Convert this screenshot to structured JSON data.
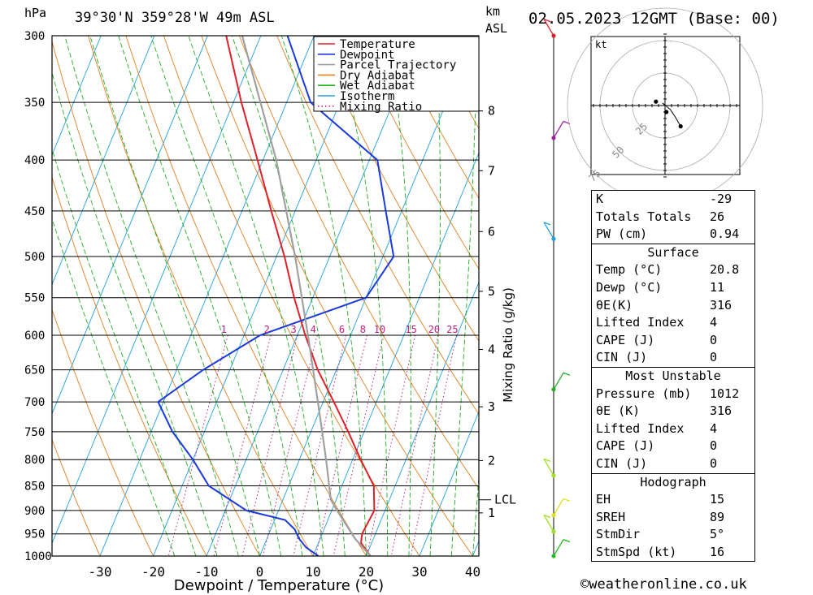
{
  "header": {
    "pressure_unit": "hPa",
    "location": "39°30'N  359°28'W  49m  ASL",
    "height_unit": "km",
    "height_unit2": "ASL",
    "datetime": "02.05.2023  12GMT  (Base: 00)"
  },
  "credit": "©weatheronline.co.uk",
  "hodograph": {
    "unit": "kt",
    "ring_labels": [
      "25",
      "50",
      "75"
    ],
    "trace": [
      [
        0,
        0
      ],
      [
        -2,
        2
      ],
      [
        4,
        -3
      ],
      [
        8,
        -9
      ],
      [
        12,
        -16
      ]
    ],
    "points": [
      [
        -7,
        3
      ],
      [
        1,
        -5
      ],
      [
        12,
        -16
      ]
    ]
  },
  "indices": {
    "rows": [
      {
        "label": "K",
        "value": "-29"
      },
      {
        "label": "Totals Totals",
        "value": "26"
      },
      {
        "label": "PW (cm)",
        "value": "0.94"
      }
    ]
  },
  "surface": {
    "title": "Surface",
    "rows": [
      {
        "label": "Temp (°C)",
        "value": "20.8"
      },
      {
        "label": "Dewp (°C)",
        "value": "11"
      },
      {
        "label": "θE(K)",
        "value": "316"
      },
      {
        "label": "Lifted Index",
        "value": "4"
      },
      {
        "label": "CAPE (J)",
        "value": "0"
      },
      {
        "label": "CIN (J)",
        "value": "0"
      }
    ]
  },
  "most_unstable": {
    "title": "Most Unstable",
    "rows": [
      {
        "label": "Pressure (mb)",
        "value": "1012"
      },
      {
        "label": "θE (K)",
        "value": "316"
      },
      {
        "label": "Lifted Index",
        "value": "4"
      },
      {
        "label": "CAPE (J)",
        "value": "0"
      },
      {
        "label": "CIN (J)",
        "value": "0"
      }
    ]
  },
  "hodograph_table": {
    "title": "Hodograph",
    "rows": [
      {
        "label": "EH",
        "value": "15"
      },
      {
        "label": "SREH",
        "value": "89"
      },
      {
        "label": "StmDir",
        "value": "5°"
      },
      {
        "label": "StmSpd (kt)",
        "value": "16"
      }
    ]
  },
  "chart_data": {
    "type": "line",
    "title": "",
    "xlabel": "Dewpoint / Temperature (°C)",
    "ylabel": "hPa",
    "right_label": "Mixing Ratio (g/kg)",
    "x_ticks": [
      -30,
      -20,
      -10,
      0,
      10,
      20,
      30,
      40
    ],
    "pressure_levels": [
      300,
      350,
      400,
      450,
      500,
      550,
      600,
      650,
      700,
      750,
      800,
      850,
      900,
      950,
      1000
    ],
    "height_ticks": [
      {
        "label": "8",
        "p": 357
      },
      {
        "label": "7",
        "p": 410
      },
      {
        "label": "6",
        "p": 472
      },
      {
        "label": "5",
        "p": 542
      },
      {
        "label": "4",
        "p": 620
      },
      {
        "label": "3",
        "p": 708
      },
      {
        "label": "2",
        "p": 802
      },
      {
        "label": "1",
        "p": 905
      }
    ],
    "lcl": {
      "label": "LCL",
      "p": 878
    },
    "mixing_ratio_labels": [
      "1",
      "2",
      "3",
      "4",
      "6",
      "8",
      "10",
      "15",
      "20",
      "25"
    ],
    "mixing_ratio_values": [
      1,
      2,
      3,
      4,
      6,
      8,
      10,
      15,
      20,
      25
    ],
    "legend": {
      "position": "top-right",
      "entries": [
        {
          "name": "Temperature",
          "color": "#e0202a",
          "style": "solid"
        },
        {
          "name": "Dewpoint",
          "color": "#1a3adc",
          "style": "solid"
        },
        {
          "name": "Parcel Trajectory",
          "color": "#a0a0a0",
          "style": "solid"
        },
        {
          "name": "Dry Adiabat",
          "color": "#e08020",
          "style": "solid"
        },
        {
          "name": "Wet Adiabat",
          "color": "#20b020",
          "style": "solid"
        },
        {
          "name": "Isotherm",
          "color": "#20a0e0",
          "style": "solid"
        },
        {
          "name": "Mixing Ratio",
          "color": "#c02080",
          "style": "dotted"
        }
      ]
    },
    "series": [
      {
        "name": "Temperature",
        "points": [
          [
            1000,
            20.8
          ],
          [
            970,
            18.0
          ],
          [
            950,
            17.5
          ],
          [
            900,
            18.0
          ],
          [
            850,
            16.0
          ],
          [
            800,
            11.5
          ],
          [
            750,
            7.0
          ],
          [
            700,
            2.0
          ],
          [
            650,
            -3.5
          ],
          [
            600,
            -8.5
          ],
          [
            550,
            -13.5
          ],
          [
            500,
            -18.5
          ],
          [
            450,
            -24.5
          ],
          [
            400,
            -31.0
          ],
          [
            350,
            -38.5
          ],
          [
            300,
            -46.5
          ]
        ]
      },
      {
        "name": "Dewpoint",
        "points": [
          [
            1000,
            11.0
          ],
          [
            980,
            8.0
          ],
          [
            960,
            6.0
          ],
          [
            940,
            4.5
          ],
          [
            920,
            2.0
          ],
          [
            900,
            -6.0
          ],
          [
            850,
            -15.0
          ],
          [
            800,
            -20.0
          ],
          [
            750,
            -26.0
          ],
          [
            700,
            -31.0
          ],
          [
            650,
            -25.0
          ],
          [
            600,
            -17.0
          ],
          [
            550,
            0.0
          ],
          [
            500,
            2.0
          ],
          [
            450,
            -3.0
          ],
          [
            400,
            -8.5
          ],
          [
            350,
            -25.5
          ],
          [
            300,
            -35.0
          ]
        ]
      },
      {
        "name": "Parcel Trajectory",
        "points": [
          [
            1000,
            20.8
          ],
          [
            960,
            16.5
          ],
          [
            900,
            11.0
          ],
          [
            878,
            9.0
          ],
          [
            800,
            5.0
          ],
          [
            700,
            -1.0
          ],
          [
            600,
            -8.0
          ],
          [
            500,
            -16.5
          ],
          [
            400,
            -27.5
          ],
          [
            300,
            -43.5
          ]
        ]
      }
    ],
    "wind_barbs": [
      {
        "p": 300,
        "color": "#e0202a"
      },
      {
        "p": 380,
        "color": "#a020a0"
      },
      {
        "p": 480,
        "color": "#20a0e0"
      },
      {
        "p": 680,
        "color": "#20b020"
      },
      {
        "p": 830,
        "color": "#a0e020"
      },
      {
        "p": 910,
        "color": "#e0e020"
      },
      {
        "p": 945,
        "color": "#a0e020"
      },
      {
        "p": 1000,
        "color": "#20c020"
      }
    ]
  }
}
